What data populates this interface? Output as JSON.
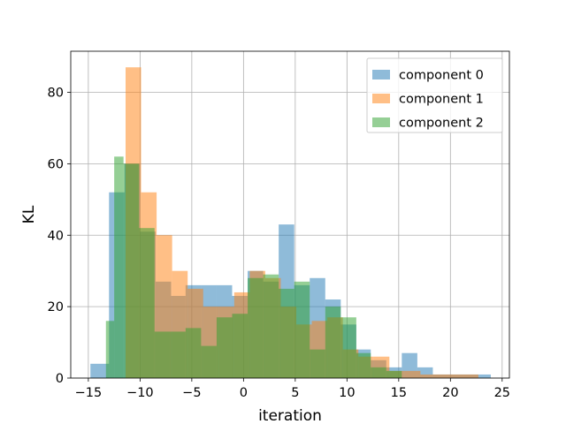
{
  "chart_data": {
    "type": "bar",
    "subtype": "overlapping-histogram",
    "title": "",
    "xlabel": "iteration",
    "ylabel": "KL",
    "xlim": [
      -16.7,
      25.7
    ],
    "ylim": [
      0,
      91.5
    ],
    "xticks": [
      -15,
      -10,
      -5,
      0,
      5,
      10,
      15,
      20,
      25
    ],
    "yticks": [
      0,
      20,
      40,
      60,
      80
    ],
    "grid": true,
    "legend_position": "top-right",
    "bar_alpha": 0.5,
    "series": [
      {
        "name": "component 0",
        "color": "#1f77b4",
        "bins": [
          [
            -14.8,
            -13.0,
            4
          ],
          [
            -13.0,
            -11.5,
            52
          ],
          [
            -11.5,
            -10.0,
            60
          ],
          [
            -10.0,
            -8.5,
            41
          ],
          [
            -8.5,
            -7.0,
            27
          ],
          [
            -7.0,
            -5.6,
            23
          ],
          [
            -5.6,
            -4.1,
            26
          ],
          [
            -4.1,
            -2.6,
            26
          ],
          [
            -2.6,
            -1.1,
            26
          ],
          [
            -1.1,
            0.4,
            23
          ],
          [
            0.4,
            1.9,
            30
          ],
          [
            1.9,
            3.4,
            27
          ],
          [
            3.4,
            4.9,
            43
          ],
          [
            4.9,
            6.4,
            26
          ],
          [
            6.4,
            7.9,
            28
          ],
          [
            7.9,
            9.4,
            22
          ],
          [
            9.4,
            10.9,
            15
          ],
          [
            10.9,
            12.3,
            8
          ],
          [
            12.3,
            13.8,
            5
          ],
          [
            13.8,
            15.3,
            3
          ],
          [
            15.3,
            16.8,
            7
          ],
          [
            16.8,
            18.3,
            3
          ],
          [
            18.3,
            19.8,
            1
          ],
          [
            19.8,
            21.3,
            1
          ],
          [
            21.3,
            22.8,
            1
          ],
          [
            22.8,
            23.9,
            1
          ]
        ]
      },
      {
        "name": "component 1",
        "color": "#ff7f0e",
        "bins": [
          [
            -11.4,
            -9.9,
            87
          ],
          [
            -9.9,
            -8.4,
            52
          ],
          [
            -8.4,
            -6.9,
            40
          ],
          [
            -6.9,
            -5.4,
            30
          ],
          [
            -5.4,
            -3.9,
            25
          ],
          [
            -3.9,
            -2.4,
            20
          ],
          [
            -2.4,
            -0.9,
            20
          ],
          [
            -0.9,
            0.6,
            24
          ],
          [
            0.6,
            2.1,
            30
          ],
          [
            2.1,
            3.6,
            28
          ],
          [
            3.6,
            5.1,
            20
          ],
          [
            5.1,
            6.6,
            15
          ],
          [
            6.6,
            8.1,
            16
          ],
          [
            8.1,
            9.6,
            17
          ],
          [
            9.6,
            11.1,
            8
          ],
          [
            11.1,
            12.6,
            6
          ],
          [
            12.6,
            14.1,
            6
          ],
          [
            14.1,
            15.6,
            2
          ],
          [
            15.6,
            17.1,
            2
          ],
          [
            17.1,
            18.6,
            1
          ],
          [
            18.6,
            20.1,
            1
          ],
          [
            20.1,
            21.6,
            1
          ],
          [
            21.6,
            22.7,
            1
          ]
        ]
      },
      {
        "name": "component 2",
        "color": "#2ca02c",
        "bins": [
          [
            -13.3,
            -12.5,
            16
          ],
          [
            -12.5,
            -11.6,
            62
          ],
          [
            -11.6,
            -10.1,
            60
          ],
          [
            -10.1,
            -8.6,
            42
          ],
          [
            -8.6,
            -7.1,
            13
          ],
          [
            -7.1,
            -5.6,
            13
          ],
          [
            -5.6,
            -4.1,
            14
          ],
          [
            -4.1,
            -2.6,
            9
          ],
          [
            -2.6,
            -1.1,
            17
          ],
          [
            -1.1,
            0.4,
            18
          ],
          [
            0.4,
            1.9,
            28
          ],
          [
            1.9,
            3.4,
            29
          ],
          [
            3.4,
            4.9,
            25
          ],
          [
            4.9,
            6.4,
            27
          ],
          [
            6.4,
            7.9,
            8
          ],
          [
            7.9,
            9.4,
            20
          ],
          [
            9.4,
            10.9,
            17
          ],
          [
            10.9,
            12.3,
            7
          ],
          [
            12.3,
            13.8,
            3
          ],
          [
            13.8,
            15.3,
            2
          ]
        ]
      }
    ]
  }
}
